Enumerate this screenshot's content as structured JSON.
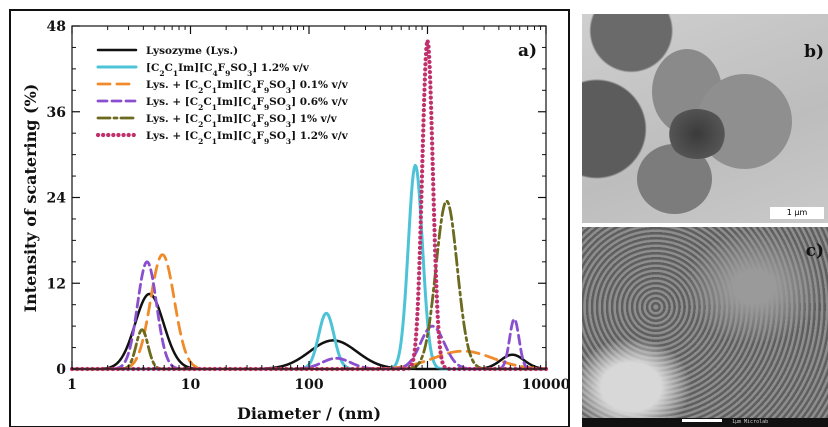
{
  "panels": {
    "a": "a)",
    "b": "b)",
    "c": "c)"
  },
  "micrographs": {
    "b": {
      "scale_label": "1 μm"
    },
    "c": {
      "strip_text": "1μm  Microlab"
    }
  },
  "chart_data": {
    "type": "line",
    "xlabel": "Diameter / (nm)",
    "ylabel": "Intensity of scatering (%)",
    "xscale": "log",
    "xlim": [
      1,
      10000
    ],
    "ylim": [
      0,
      48
    ],
    "xticks": [
      1,
      10,
      100,
      1000,
      10000
    ],
    "xtick_labels": [
      "1",
      "10",
      "100",
      "1000",
      "10000"
    ],
    "yticks": [
      0,
      12,
      24,
      36,
      48
    ],
    "ytick_labels": [
      "0",
      "12",
      "24",
      "36",
      "48"
    ],
    "legend_position": "top-left",
    "series": [
      {
        "name_parts": [
          [
            "Lysozyme (Lys.)",
            ""
          ]
        ],
        "color": "#111111",
        "dash": "solid",
        "width": 2.5,
        "peaks": [
          {
            "center": 4.5,
            "height": 10.5,
            "width": 0.12
          },
          {
            "center": 160,
            "height": 4,
            "width": 0.2
          },
          {
            "center": 5200,
            "height": 2,
            "width": 0.1
          }
        ]
      },
      {
        "name_parts": [
          [
            "[C",
            ""
          ],
          [
            "2",
            "sub"
          ],
          [
            "C",
            ""
          ],
          [
            "1",
            "sub"
          ],
          [
            "Im][C",
            ""
          ],
          [
            "4",
            "sub"
          ],
          [
            "F",
            ""
          ],
          [
            "9",
            "sub"
          ],
          [
            "SO",
            ""
          ],
          [
            "3",
            "sub"
          ],
          [
            "] 1.2% v/v",
            ""
          ]
        ],
        "color": "#4dc3d8",
        "dash": "solid",
        "width": 3,
        "peaks": [
          {
            "center": 140,
            "height": 7.8,
            "width": 0.065
          },
          {
            "center": 790,
            "height": 28.5,
            "width": 0.06
          }
        ]
      },
      {
        "name_parts": [
          [
            "Lys. + [C",
            ""
          ],
          [
            "2",
            "sub"
          ],
          [
            "C",
            ""
          ],
          [
            "1",
            "sub"
          ],
          [
            "Im][C",
            ""
          ],
          [
            "4",
            "sub"
          ],
          [
            "F",
            ""
          ],
          [
            "9",
            "sub"
          ],
          [
            "SO",
            ""
          ],
          [
            "3",
            "sub"
          ],
          [
            "] 0.1% v/v",
            ""
          ]
        ],
        "color": "#f08a2a",
        "dash": "12,7",
        "width": 2.8,
        "peaks": [
          {
            "center": 5.8,
            "height": 16,
            "width": 0.1
          },
          {
            "center": 2000,
            "height": 2.5,
            "width": 0.25
          }
        ]
      },
      {
        "name_parts": [
          [
            "Lys. + [C",
            ""
          ],
          [
            "2",
            "sub"
          ],
          [
            "C",
            ""
          ],
          [
            "1",
            "sub"
          ],
          [
            "Im][C",
            ""
          ],
          [
            "4",
            "sub"
          ],
          [
            "F",
            ""
          ],
          [
            "9",
            "sub"
          ],
          [
            "SO",
            ""
          ],
          [
            "3",
            "sub"
          ],
          [
            "] 0.6% v/v",
            ""
          ]
        ],
        "color": "#8a4fcf",
        "dash": "9,5",
        "width": 2.8,
        "peaks": [
          {
            "center": 4.3,
            "height": 15,
            "width": 0.08
          },
          {
            "center": 170,
            "height": 1.5,
            "width": 0.12
          },
          {
            "center": 1100,
            "height": 6,
            "width": 0.1
          },
          {
            "center": 5400,
            "height": 7,
            "width": 0.04
          }
        ]
      },
      {
        "name_parts": [
          [
            "Lys. + [C",
            ""
          ],
          [
            "2",
            "sub"
          ],
          [
            "C",
            ""
          ],
          [
            "1",
            "sub"
          ],
          [
            "Im][C",
            ""
          ],
          [
            "4",
            "sub"
          ],
          [
            "F",
            ""
          ],
          [
            "9",
            "sub"
          ],
          [
            "SO",
            ""
          ],
          [
            "3",
            "sub"
          ],
          [
            "] 1% v/v",
            ""
          ]
        ],
        "color": "#6b6a1e",
        "dash": "12,4,3,4",
        "width": 2.8,
        "peaks": [
          {
            "center": 3.9,
            "height": 5.5,
            "width": 0.05
          },
          {
            "center": 1450,
            "height": 23.5,
            "width": 0.09
          }
        ]
      },
      {
        "name_parts": [
          [
            "Lys. + [C",
            ""
          ],
          [
            "2",
            "sub"
          ],
          [
            "C",
            ""
          ],
          [
            "1",
            "sub"
          ],
          [
            "Im][C",
            ""
          ],
          [
            "4",
            "sub"
          ],
          [
            "F",
            ""
          ],
          [
            "9",
            "sub"
          ],
          [
            "SO",
            ""
          ],
          [
            "3",
            "sub"
          ],
          [
            "] 1.2% v/v",
            ""
          ]
        ],
        "color": "#c0306a",
        "dash": "0.1,5",
        "width": 4.2,
        "peaks": [
          {
            "center": 1000,
            "height": 46,
            "width": 0.045
          }
        ]
      }
    ]
  }
}
